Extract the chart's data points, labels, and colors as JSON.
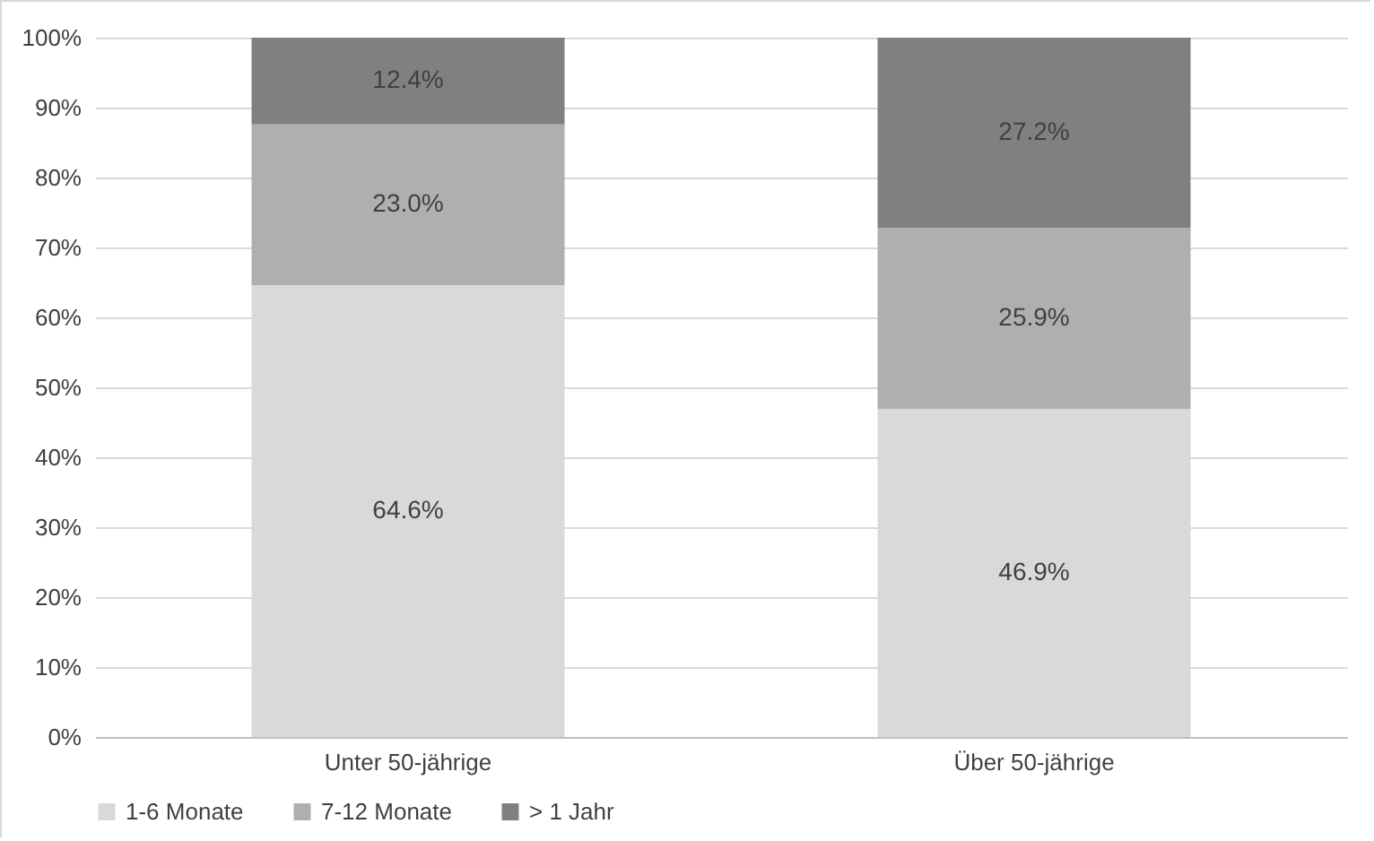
{
  "chart_data": {
    "type": "bar",
    "stacked": true,
    "categories": [
      "Unter 50-jährige",
      "Über 50-jährige"
    ],
    "series": [
      {
        "name": "1-6 Monate",
        "color": "#d9d9d9",
        "values": [
          64.6,
          46.9
        ],
        "value_labels": [
          "64.6%",
          "46.9%"
        ]
      },
      {
        "name": "7-12 Monate",
        "color": "#afafaf",
        "values": [
          23.0,
          25.9
        ],
        "value_labels": [
          "23.0%",
          "25.9%"
        ]
      },
      {
        "name": "> 1 Jahr",
        "color": "#808080",
        "values": [
          12.4,
          27.2
        ],
        "value_labels": [
          "12.4%",
          "27.2%"
        ]
      }
    ],
    "ylim": [
      0,
      100
    ],
    "yticks": [
      {
        "value": 0,
        "label": "0%"
      },
      {
        "value": 10,
        "label": "10%"
      },
      {
        "value": 20,
        "label": "20%"
      },
      {
        "value": 30,
        "label": "30%"
      },
      {
        "value": 40,
        "label": "40%"
      },
      {
        "value": 50,
        "label": "50%"
      },
      {
        "value": 60,
        "label": "60%"
      },
      {
        "value": 70,
        "label": "70%"
      },
      {
        "value": 80,
        "label": "80%"
      },
      {
        "value": 90,
        "label": "90%"
      },
      {
        "value": 100,
        "label": "100%"
      }
    ],
    "grid": "y",
    "legend": "bottom"
  }
}
